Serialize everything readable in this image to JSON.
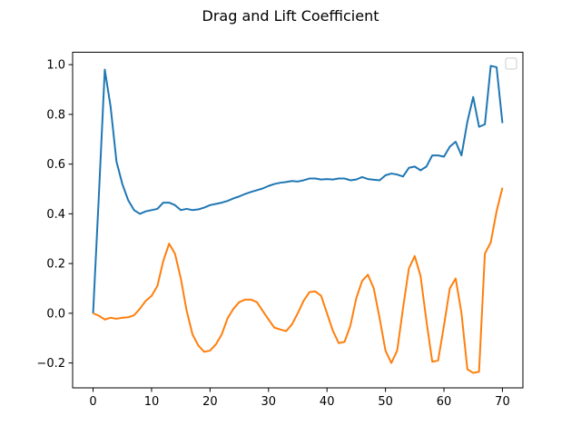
{
  "chart_data": {
    "type": "line",
    "title": "Drag and Lift Coefficient",
    "xlabel": "",
    "ylabel": "",
    "xlim": [
      -3.5,
      73.5
    ],
    "ylim": [
      -0.3,
      1.05
    ],
    "x_ticks": [
      0,
      10,
      20,
      30,
      40,
      50,
      60,
      70
    ],
    "y_ticks": [
      -0.2,
      0.0,
      0.2,
      0.4,
      0.6,
      0.8,
      1.0
    ],
    "y_tick_labels": [
      "−0.2",
      "0.0",
      "0.2",
      "0.4",
      "0.6",
      "0.8",
      "1.0"
    ],
    "grid": false,
    "legend": "top-right",
    "x": [
      0,
      1,
      2,
      3,
      4,
      5,
      6,
      7,
      8,
      9,
      10,
      11,
      12,
      13,
      14,
      15,
      16,
      17,
      18,
      19,
      20,
      21,
      22,
      23,
      24,
      25,
      26,
      27,
      28,
      29,
      30,
      31,
      32,
      33,
      34,
      35,
      36,
      37,
      38,
      39,
      40,
      41,
      42,
      43,
      44,
      45,
      46,
      47,
      48,
      49,
      50,
      51,
      52,
      53,
      54,
      55,
      56,
      57,
      58,
      59,
      60,
      61,
      62,
      63,
      64,
      65,
      66,
      67,
      68,
      69,
      70
    ],
    "series": [
      {
        "color": "#1f77b4",
        "values": [
          0.0,
          0.48,
          0.98,
          0.83,
          0.61,
          0.52,
          0.455,
          0.415,
          0.4,
          0.41,
          0.415,
          0.42,
          0.445,
          0.445,
          0.435,
          0.415,
          0.42,
          0.415,
          0.418,
          0.425,
          0.435,
          0.44,
          0.445,
          0.452,
          0.462,
          0.47,
          0.48,
          0.488,
          0.495,
          0.502,
          0.512,
          0.52,
          0.525,
          0.528,
          0.532,
          0.53,
          0.535,
          0.542,
          0.542,
          0.538,
          0.54,
          0.538,
          0.542,
          0.542,
          0.535,
          0.538,
          0.548,
          0.54,
          0.537,
          0.535,
          0.555,
          0.562,
          0.558,
          0.55,
          0.585,
          0.59,
          0.575,
          0.59,
          0.635,
          0.635,
          0.63,
          0.67,
          0.69,
          0.635,
          0.77,
          0.87,
          0.75,
          0.76,
          0.995,
          0.99,
          0.765
        ]
      },
      {
        "color": "#ff7f0e",
        "values": [
          0.0,
          -0.01,
          -0.025,
          -0.018,
          -0.022,
          -0.018,
          -0.016,
          -0.008,
          0.018,
          0.05,
          0.07,
          0.11,
          0.21,
          0.28,
          0.24,
          0.14,
          0.01,
          -0.085,
          -0.13,
          -0.155,
          -0.15,
          -0.125,
          -0.085,
          -0.02,
          0.018,
          0.045,
          0.055,
          0.055,
          0.045,
          0.01,
          -0.025,
          -0.058,
          -0.065,
          -0.072,
          -0.045,
          0.0,
          0.05,
          0.085,
          0.088,
          0.07,
          0.0,
          -0.07,
          -0.12,
          -0.115,
          -0.05,
          0.06,
          0.13,
          0.155,
          0.1,
          -0.02,
          -0.15,
          -0.2,
          -0.15,
          0.02,
          0.18,
          0.23,
          0.15,
          -0.03,
          -0.195,
          -0.19,
          -0.05,
          0.1,
          0.14,
          0.0,
          -0.225,
          -0.24,
          -0.235,
          0.24,
          0.285,
          0.41,
          0.505
        ]
      }
    ]
  }
}
